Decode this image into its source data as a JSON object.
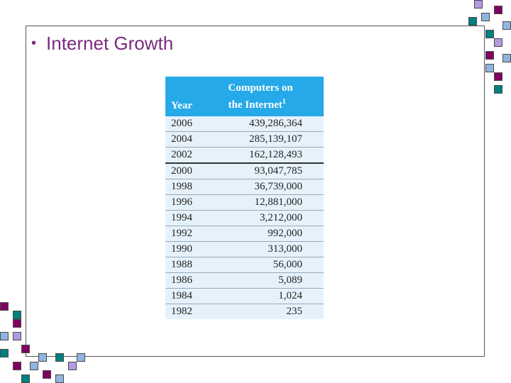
{
  "slide": {
    "bullet": "•",
    "title": "Internet Growth"
  },
  "table": {
    "header_year": "Year",
    "header_computers_line1": "Computers on",
    "header_computers_line2": "the Internet",
    "header_footnote": "1",
    "rows": [
      {
        "year": "2006",
        "computers": "439,286,364"
      },
      {
        "year": "2004",
        "computers": "285,139,107"
      },
      {
        "year": "2002",
        "computers": "162,128,493"
      },
      {
        "year": "2000",
        "computers": "93,047,785"
      },
      {
        "year": "1998",
        "computers": "36,739,000"
      },
      {
        "year": "1996",
        "computers": "12,881,000"
      },
      {
        "year": "1994",
        "computers": "3,212,000"
      },
      {
        "year": "1992",
        "computers": "992,000"
      },
      {
        "year": "1990",
        "computers": "313,000"
      },
      {
        "year": "1988",
        "computers": "56,000"
      },
      {
        "year": "1986",
        "computers": "5,089"
      },
      {
        "year": "1984",
        "computers": "1,024"
      },
      {
        "year": "1982",
        "computers": "235"
      }
    ]
  },
  "colors": {
    "title": "#7a2a80",
    "header_bg": "#25a9e8",
    "table_bg": "#e6f2fb",
    "teal": "#008080",
    "purple": "#800060",
    "blue": "#8fb4e0",
    "lavender": "#b39ae0"
  }
}
